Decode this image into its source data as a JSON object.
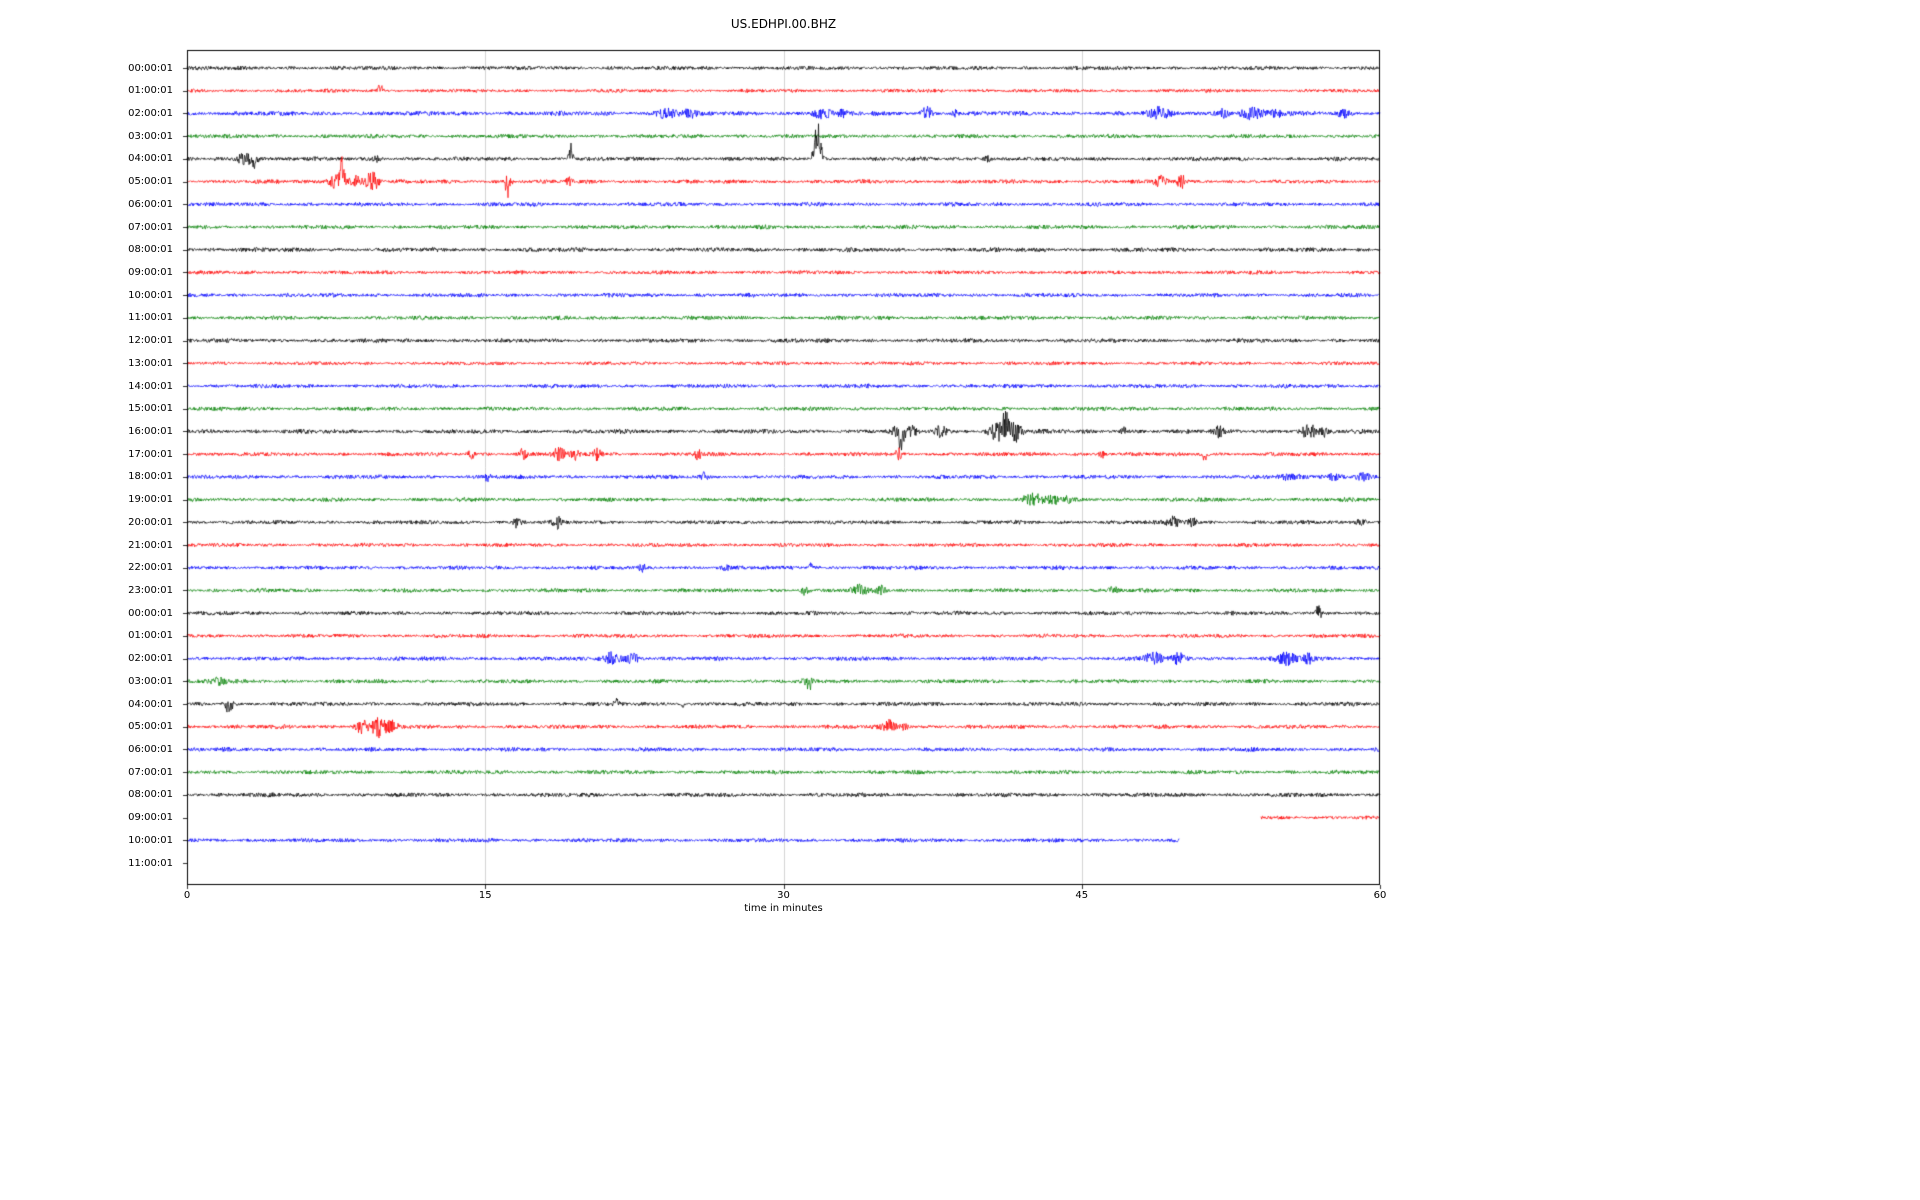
{
  "title": "US.EDHPI.00.BHZ",
  "chart_data": {
    "type": "line",
    "subtype": "seismogram-helicorder-dayplot",
    "title": "US.EDHPI.00.BHZ",
    "xlabel": "time in minutes",
    "xlim": [
      0,
      60
    ],
    "x_ticks": [
      0,
      15,
      30,
      45,
      60
    ],
    "x_tick_labels": [
      "0",
      "15",
      "30",
      "45",
      "60"
    ],
    "grid": "vertical-only",
    "minutes_per_row": 60,
    "color_cycle": [
      "#000000",
      "#ff0000",
      "#0000ff",
      "#008000"
    ],
    "grid_color": "#c8c8c8",
    "axis_color": "#000000",
    "rows": [
      {
        "label": "00:00:01",
        "color": "#000000",
        "start": 0,
        "end": 60,
        "amp": 1.9,
        "events": []
      },
      {
        "label": "01:00:01",
        "color": "#ff0000",
        "start": 0,
        "end": 60,
        "amp": 1.7,
        "events": [
          {
            "t": 9.7,
            "w": 0.25,
            "a": 8,
            "dir": 1
          }
        ]
      },
      {
        "label": "02:00:01",
        "color": "#0000ff",
        "start": 0,
        "end": 60,
        "amp": 2.2,
        "events": [
          {
            "t": 24.1,
            "w": 0.9,
            "a": 5
          },
          {
            "t": 25.3,
            "w": 0.5,
            "a": 4
          },
          {
            "t": 31.9,
            "w": 0.7,
            "a": 5
          },
          {
            "t": 33.0,
            "w": 0.4,
            "a": 3
          },
          {
            "t": 37.2,
            "w": 0.4,
            "a": 6
          },
          {
            "t": 37.2,
            "w": 0.25,
            "a": 8,
            "dir": 1
          },
          {
            "t": 38.6,
            "w": 0.3,
            "a": 3
          },
          {
            "t": 48.9,
            "w": 0.8,
            "a": 5
          },
          {
            "t": 52.1,
            "w": 0.6,
            "a": 4
          },
          {
            "t": 53.6,
            "w": 1.0,
            "a": 5
          },
          {
            "t": 54.8,
            "w": 0.5,
            "a": 4
          },
          {
            "t": 58.2,
            "w": 0.5,
            "a": 3
          }
        ]
      },
      {
        "label": "03:00:01",
        "color": "#008000",
        "start": 0,
        "end": 60,
        "amp": 1.9,
        "events": []
      },
      {
        "label": "04:00:01",
        "color": "#000000",
        "start": 0,
        "end": 60,
        "amp": 1.9,
        "events": [
          {
            "t": 3.0,
            "w": 0.8,
            "a": 6
          },
          {
            "t": 3.4,
            "w": 0.2,
            "a": 12,
            "dir": -1
          },
          {
            "t": 9.5,
            "w": 0.4,
            "a": 3
          },
          {
            "t": 19.3,
            "w": 0.2,
            "a": 16,
            "dir": 1
          },
          {
            "t": 31.7,
            "w": 0.35,
            "a": 40,
            "dir": 1
          },
          {
            "t": 40.3,
            "w": 0.4,
            "a": 3
          }
        ]
      },
      {
        "label": "05:00:01",
        "color": "#ff0000",
        "start": 0,
        "end": 60,
        "amp": 1.9,
        "events": [
          {
            "t": 7.6,
            "w": 0.7,
            "a": 8
          },
          {
            "t": 7.8,
            "w": 0.2,
            "a": 22,
            "dir": 1
          },
          {
            "t": 8.5,
            "w": 0.4,
            "a": 5
          },
          {
            "t": 9.3,
            "w": 0.6,
            "a": 9
          },
          {
            "t": 16.1,
            "w": 0.35,
            "a": 6
          },
          {
            "t": 16.1,
            "w": 0.3,
            "a": 12,
            "dir": -1
          },
          {
            "t": 19.2,
            "w": 0.2,
            "a": 4
          },
          {
            "t": 49.0,
            "w": 0.5,
            "a": 6
          },
          {
            "t": 50.0,
            "w": 0.3,
            "a": 7
          }
        ]
      },
      {
        "label": "06:00:01",
        "color": "#0000ff",
        "start": 0,
        "end": 60,
        "amp": 1.9,
        "events": []
      },
      {
        "label": "07:00:01",
        "color": "#008000",
        "start": 0,
        "end": 60,
        "amp": 1.9,
        "events": []
      },
      {
        "label": "08:00:01",
        "color": "#000000",
        "start": 0,
        "end": 60,
        "amp": 2.1,
        "events": []
      },
      {
        "label": "09:00:01",
        "color": "#ff0000",
        "start": 0,
        "end": 60,
        "amp": 1.8,
        "events": []
      },
      {
        "label": "10:00:01",
        "color": "#0000ff",
        "start": 0,
        "end": 60,
        "amp": 1.9,
        "events": []
      },
      {
        "label": "11:00:01",
        "color": "#008000",
        "start": 0,
        "end": 60,
        "amp": 1.9,
        "events": []
      },
      {
        "label": "12:00:01",
        "color": "#000000",
        "start": 0,
        "end": 60,
        "amp": 2.0,
        "events": []
      },
      {
        "label": "13:00:01",
        "color": "#ff0000",
        "start": 0,
        "end": 60,
        "amp": 1.7,
        "events": []
      },
      {
        "label": "14:00:01",
        "color": "#0000ff",
        "start": 0,
        "end": 60,
        "amp": 1.9,
        "events": []
      },
      {
        "label": "15:00:01",
        "color": "#008000",
        "start": 0,
        "end": 60,
        "amp": 1.9,
        "events": []
      },
      {
        "label": "16:00:01",
        "color": "#000000",
        "start": 0,
        "end": 60,
        "amp": 2.1,
        "events": [
          {
            "t": 35.9,
            "w": 0.6,
            "a": 7
          },
          {
            "t": 35.9,
            "w": 0.2,
            "a": 26,
            "dir": -1
          },
          {
            "t": 36.5,
            "w": 0.3,
            "a": 5
          },
          {
            "t": 37.9,
            "w": 0.5,
            "a": 5
          },
          {
            "t": 40.9,
            "w": 0.8,
            "a": 11
          },
          {
            "t": 41.2,
            "w": 0.3,
            "a": 14,
            "dir": 1
          },
          {
            "t": 41.7,
            "w": 0.5,
            "a": 9
          },
          {
            "t": 47.1,
            "w": 0.3,
            "a": 4
          },
          {
            "t": 51.9,
            "w": 0.4,
            "a": 5
          },
          {
            "t": 56.4,
            "w": 0.6,
            "a": 7
          },
          {
            "t": 57.2,
            "w": 0.3,
            "a": 5
          }
        ]
      },
      {
        "label": "17:00:01",
        "color": "#ff0000",
        "start": 0,
        "end": 60,
        "amp": 1.9,
        "events": [
          {
            "t": 14.3,
            "w": 0.25,
            "a": 5
          },
          {
            "t": 16.9,
            "w": 0.3,
            "a": 6
          },
          {
            "t": 18.7,
            "w": 0.5,
            "a": 6
          },
          {
            "t": 19.5,
            "w": 0.3,
            "a": 5
          },
          {
            "t": 20.6,
            "w": 0.4,
            "a": 6
          },
          {
            "t": 25.7,
            "w": 0.3,
            "a": 5
          },
          {
            "t": 35.8,
            "w": 0.25,
            "a": 6
          },
          {
            "t": 46.0,
            "w": 0.25,
            "a": 4
          },
          {
            "t": 51.2,
            "w": 0.25,
            "a": 8,
            "dir": -1
          }
        ]
      },
      {
        "label": "18:00:01",
        "color": "#0000ff",
        "start": 0,
        "end": 60,
        "amp": 1.9,
        "events": [
          {
            "t": 15.1,
            "w": 0.25,
            "a": 4
          },
          {
            "t": 26.0,
            "w": 0.3,
            "a": 4
          },
          {
            "t": 55.5,
            "w": 0.9,
            "a": 3
          },
          {
            "t": 57.6,
            "w": 0.9,
            "a": 3
          },
          {
            "t": 59.2,
            "w": 0.6,
            "a": 3
          }
        ]
      },
      {
        "label": "19:00:01",
        "color": "#008000",
        "start": 0,
        "end": 60,
        "amp": 1.9,
        "events": [
          {
            "t": 42.6,
            "w": 0.9,
            "a": 5
          },
          {
            "t": 43.6,
            "w": 0.5,
            "a": 4
          },
          {
            "t": 44.3,
            "w": 0.3,
            "a": 3
          }
        ]
      },
      {
        "label": "20:00:01",
        "color": "#000000",
        "start": 0,
        "end": 60,
        "amp": 1.9,
        "events": [
          {
            "t": 16.6,
            "w": 0.3,
            "a": 5
          },
          {
            "t": 18.6,
            "w": 0.3,
            "a": 6
          },
          {
            "t": 49.6,
            "w": 0.5,
            "a": 5
          },
          {
            "t": 50.6,
            "w": 0.4,
            "a": 5
          },
          {
            "t": 59.1,
            "w": 0.4,
            "a": 4
          }
        ]
      },
      {
        "label": "21:00:01",
        "color": "#ff0000",
        "start": 0,
        "end": 60,
        "amp": 1.8,
        "events": []
      },
      {
        "label": "22:00:01",
        "color": "#0000ff",
        "start": 0,
        "end": 60,
        "amp": 1.9,
        "events": [
          {
            "t": 22.9,
            "w": 0.3,
            "a": 3
          },
          {
            "t": 27.1,
            "w": 0.25,
            "a": 3
          },
          {
            "t": 31.4,
            "w": 0.2,
            "a": 6,
            "dir": 1
          }
        ]
      },
      {
        "label": "23:00:01",
        "color": "#008000",
        "start": 0,
        "end": 60,
        "amp": 1.9,
        "events": [
          {
            "t": 31.1,
            "w": 0.35,
            "a": 4
          },
          {
            "t": 31.1,
            "w": 0.2,
            "a": 6,
            "dir": -1
          },
          {
            "t": 33.8,
            "w": 0.6,
            "a": 5
          },
          {
            "t": 34.9,
            "w": 0.4,
            "a": 4
          },
          {
            "t": 46.6,
            "w": 0.4,
            "a": 4
          }
        ]
      },
      {
        "label": "00:00:01",
        "color": "#000000",
        "start": 0,
        "end": 60,
        "amp": 1.9,
        "events": [
          {
            "t": 56.9,
            "w": 0.3,
            "a": 8
          }
        ]
      },
      {
        "label": "01:00:01",
        "color": "#ff0000",
        "start": 0,
        "end": 60,
        "amp": 1.8,
        "events": []
      },
      {
        "label": "02:00:01",
        "color": "#0000ff",
        "start": 0,
        "end": 60,
        "amp": 2.0,
        "events": [
          {
            "t": 21.3,
            "w": 0.7,
            "a": 6
          },
          {
            "t": 22.4,
            "w": 0.6,
            "a": 5
          },
          {
            "t": 48.6,
            "w": 0.7,
            "a": 6
          },
          {
            "t": 49.9,
            "w": 0.6,
            "a": 5
          },
          {
            "t": 55.3,
            "w": 0.8,
            "a": 6
          },
          {
            "t": 56.4,
            "w": 0.4,
            "a": 4
          }
        ]
      },
      {
        "label": "03:00:01",
        "color": "#008000",
        "start": 0,
        "end": 60,
        "amp": 1.9,
        "events": [
          {
            "t": 1.6,
            "w": 0.6,
            "a": 4
          },
          {
            "t": 31.3,
            "w": 0.4,
            "a": 4
          },
          {
            "t": 31.3,
            "w": 0.2,
            "a": 7,
            "dir": -1
          }
        ]
      },
      {
        "label": "04:00:01",
        "color": "#000000",
        "start": 0,
        "end": 60,
        "amp": 1.9,
        "events": [
          {
            "t": 2.1,
            "w": 0.4,
            "a": 4
          },
          {
            "t": 2.1,
            "w": 0.3,
            "a": 6,
            "dir": -1
          },
          {
            "t": 21.6,
            "w": 0.2,
            "a": 5,
            "dir": 1
          },
          {
            "t": 24.9,
            "w": 0.2,
            "a": 4,
            "dir": -1
          }
        ]
      },
      {
        "label": "05:00:01",
        "color": "#ff0000",
        "start": 0,
        "end": 60,
        "amp": 1.9,
        "events": [
          {
            "t": 8.8,
            "w": 0.6,
            "a": 6
          },
          {
            "t": 9.7,
            "w": 0.7,
            "a": 10
          },
          {
            "t": 10.4,
            "w": 0.4,
            "a": 6
          },
          {
            "t": 35.3,
            "w": 0.6,
            "a": 6
          },
          {
            "t": 36.1,
            "w": 0.3,
            "a": 4
          }
        ]
      },
      {
        "label": "06:00:01",
        "color": "#0000ff",
        "start": 0,
        "end": 60,
        "amp": 1.9,
        "events": []
      },
      {
        "label": "07:00:01",
        "color": "#008000",
        "start": 0,
        "end": 60,
        "amp": 1.9,
        "events": []
      },
      {
        "label": "08:00:01",
        "color": "#000000",
        "start": 0,
        "end": 60,
        "amp": 2.0,
        "events": []
      },
      {
        "label": "09:00:01",
        "color": "#ff0000",
        "start": 54,
        "end": 60,
        "amp": 1.8,
        "events": []
      },
      {
        "label": "10:00:01",
        "color": "#0000ff",
        "start": 0,
        "end": 49.9,
        "amp": 1.9,
        "events": []
      },
      {
        "label": "11:00:01",
        "color": "#008000",
        "start": 0,
        "end": 0,
        "amp": 0,
        "events": []
      }
    ]
  }
}
